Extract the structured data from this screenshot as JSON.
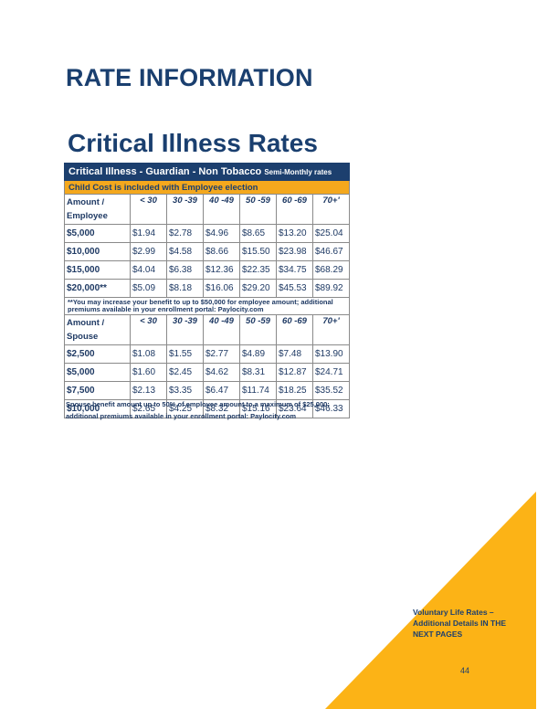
{
  "page": {
    "heading": "RATE INFORMATION",
    "section_title": "Critical Illness Rates",
    "page_number": "44"
  },
  "rate_table": {
    "header_title": "Critical Illness -  Guardian - Non Tobacco",
    "header_subtitle": "Semi-Monthly rates",
    "child_cost_note": "Child Cost is included with Employee election",
    "age_bands": [
      "< 30",
      "30 -39",
      "40 -49",
      "50 -59",
      "60 -69",
      "70+'"
    ],
    "employee": {
      "label_line1": "Amount /",
      "label_line2": "Employee",
      "rows": [
        {
          "amount": "$5,000",
          "rates": [
            "$1.94",
            "$2.78",
            "$4.96",
            "$8.65",
            "$13.20",
            "$25.04"
          ]
        },
        {
          "amount": "$10,000",
          "rates": [
            "$2.99",
            "$4.58",
            "$8.66",
            "$15.50",
            "$23.98",
            "$46.67"
          ]
        },
        {
          "amount": "$15,000",
          "rates": [
            "$4.04",
            "$6.38",
            "$12.36",
            "$22.35",
            "$34.75",
            "$68.29"
          ]
        },
        {
          "amount": "$20,000**",
          "rates": [
            "$5.09",
            "$8.18",
            "$16.06",
            "$29.20",
            "$45.53",
            "$89.92"
          ]
        }
      ]
    },
    "employee_footnote": "**You may increase your benefit to up to $50,000 for employee amount; additional premiums available in your enrollment portal: Paylocity.com",
    "spouse": {
      "label_line1": "Amount /",
      "label_line2": "Spouse",
      "rows": [
        {
          "amount": "$2,500",
          "rates": [
            "$1.08",
            "$1.55",
            "$2.77",
            "$4.89",
            "$7.48",
            "$13.90"
          ]
        },
        {
          "amount": "$5,000",
          "rates": [
            "$1.60",
            "$2.45",
            "$4.62",
            "$8.31",
            "$12.87",
            "$24.71"
          ]
        },
        {
          "amount": "$7,500",
          "rates": [
            "$2.13",
            "$3.35",
            "$6.47",
            "$11.74",
            "$18.25",
            "$35.52"
          ]
        },
        {
          "amount": "$10,000",
          "rates": [
            "$2.65",
            "$4.25",
            "$8.32",
            "$15.16",
            "$23.64",
            "$46.33"
          ]
        }
      ]
    }
  },
  "spouse_note": {
    "line1": "Spouse benefit amount up to 50% of employee amount to a maximum of $25,000;",
    "line2": "additional premiums available in your enrollment portal: Paylocity.com"
  },
  "corner": {
    "line1": "Voluntary Life Rates –",
    "line2": "Additional Details IN THE",
    "line3": "NEXT PAGES"
  },
  "colors": {
    "navy": "#1c3f6e",
    "accent_orange": "#f4a81d",
    "triangle_yellow": "#fcb316"
  }
}
